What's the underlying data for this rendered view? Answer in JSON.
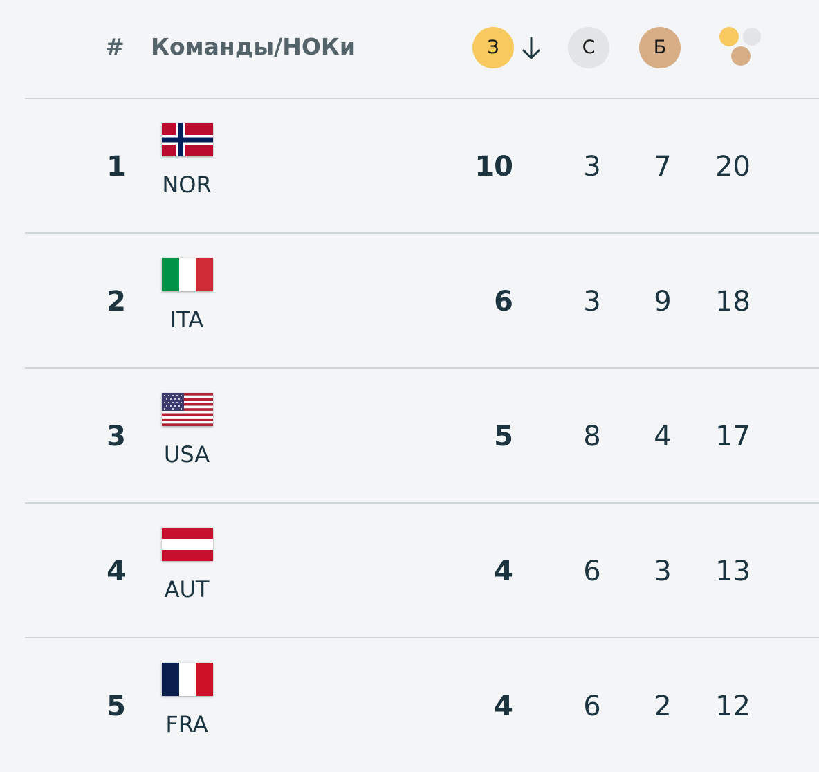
{
  "header": {
    "rank": "#",
    "team": "Команды/НОКи",
    "gold": "З",
    "silver": "С",
    "bronze": "Б"
  },
  "table": {
    "rows": [
      [
        1,
        "NOR",
        10,
        3,
        7,
        20
      ],
      [
        2,
        "ITA",
        6,
        3,
        9,
        18
      ],
      [
        3,
        "USA",
        5,
        8,
        4,
        17
      ],
      [
        4,
        "AUT",
        4,
        6,
        3,
        13
      ],
      [
        5,
        "FRA",
        4,
        6,
        2,
        12
      ]
    ]
  }
}
